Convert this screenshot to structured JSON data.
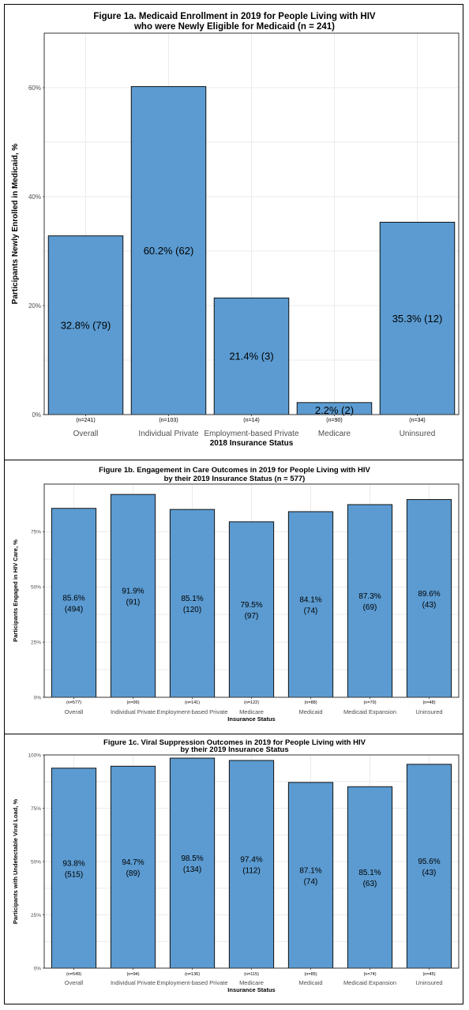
{
  "colors": {
    "bar_fill": "#5b9bd1",
    "bar_stroke": "#111111",
    "grid": "#ebebeb"
  },
  "chart_data": [
    {
      "type": "bar",
      "title": "Figure 1a. Medicaid Enrollment in 2019 for People Living with HIV",
      "subtitle": "who were Newly Eligible for Medicaid (n = 241)",
      "xlabel": "2018 Insurance Status",
      "ylabel": "Participants Newly Enrolled in Medicaid, %",
      "ylim": [
        0,
        70
      ],
      "yticks": [
        0,
        20,
        40,
        60
      ],
      "ytick_labels": [
        "0%",
        "20%",
        "40%",
        "60%"
      ],
      "grid": true,
      "categories": [
        "Overall",
        "Individual Private",
        "Employment-based Private",
        "Medicare",
        "Uninsured"
      ],
      "n_labels": [
        "(n=241)",
        "(n=103)",
        "(n=14)",
        "(n=90)",
        "(n=34)"
      ],
      "values": [
        32.8,
        60.2,
        21.4,
        2.2,
        35.3
      ],
      "data_labels": [
        "32.8% (79)",
        "60.2% (62)",
        "21.4% (3)",
        "2.2% (2)",
        "35.3% (12)"
      ]
    },
    {
      "type": "bar",
      "title": "Figure 1b. Engagement in Care Outcomes in 2019 for People Living with HIV",
      "subtitle": "by their 2019 Insurance Status (n = 577)",
      "xlabel": "Insurance Status",
      "ylabel": "Participants Engaged in HIV Care, %",
      "ylim": [
        0,
        96.6
      ],
      "yticks": [
        0,
        25,
        50,
        75
      ],
      "ytick_labels": [
        "0%",
        "25%",
        "50%",
        "75%"
      ],
      "grid": true,
      "categories": [
        "Overall",
        "Individual Private",
        "Employment-based Private",
        "Medicare",
        "Medicaid",
        "Medicaid Expansion",
        "Uninsured"
      ],
      "n_labels": [
        "(n=577)",
        "(n=99)",
        "(n=141)",
        "(n=122)",
        "(n=88)",
        "(n=79)",
        "(n=48)"
      ],
      "values": [
        85.6,
        91.9,
        85.1,
        79.5,
        84.1,
        87.3,
        89.6
      ],
      "data_labels": [
        [
          "85.6%",
          "(494)"
        ],
        [
          "91.9%",
          "(91)"
        ],
        [
          "85.1%",
          "(120)"
        ],
        [
          "79.5%",
          "(97)"
        ],
        [
          "84.1%",
          "(74)"
        ],
        [
          "87.3%",
          "(69)"
        ],
        [
          "89.6%",
          "(43)"
        ]
      ]
    },
    {
      "type": "bar",
      "title": "Figure 1c. Viral Suppression Outcomes in 2019 for People Living with HIV",
      "subtitle": "by their 2019 Insurance Status",
      "xlabel": "Insurance Status",
      "ylabel": "Participants with Undetectable Viral Load, %",
      "ylim": [
        0,
        100
      ],
      "yticks": [
        0,
        25,
        50,
        75,
        100
      ],
      "ytick_labels": [
        "0%",
        "25%",
        "50%",
        "75%",
        "100%"
      ],
      "grid": true,
      "categories": [
        "Overall",
        "Individual Private",
        "Employment-based Private",
        "Medicare",
        "Medicaid",
        "Medicaid Expansion",
        "Uninsured"
      ],
      "n_labels": [
        "(n=549)",
        "(n=94)",
        "(n=136)",
        "(n=115)",
        "(n=85)",
        "(n=74)",
        "(n=45)"
      ],
      "values": [
        93.8,
        94.7,
        98.5,
        97.4,
        87.1,
        85.1,
        95.6
      ],
      "data_labels": [
        [
          "93.8%",
          "(515)"
        ],
        [
          "94.7%",
          "(89)"
        ],
        [
          "98.5%",
          "(134)"
        ],
        [
          "97.4%",
          "(112)"
        ],
        [
          "87.1%",
          "(74)"
        ],
        [
          "85.1%",
          "(63)"
        ],
        [
          "95.6%",
          "(43)"
        ]
      ]
    }
  ]
}
